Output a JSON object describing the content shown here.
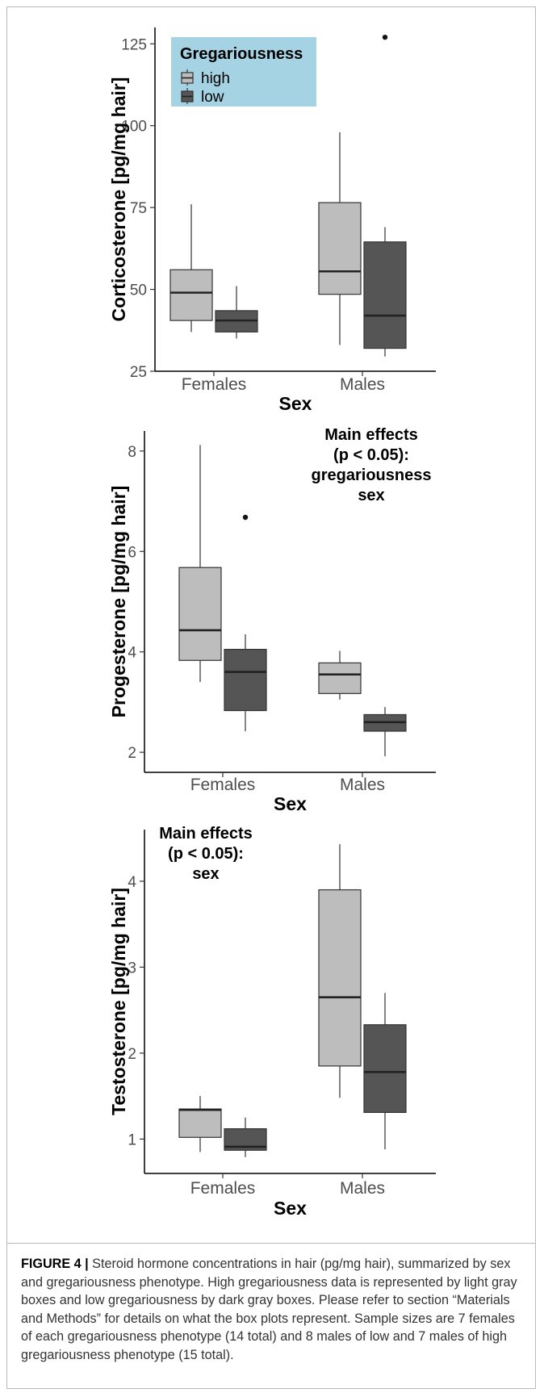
{
  "colors": {
    "high": "#bdbdbd",
    "low": "#555555",
    "legend_bg": "#a6d3e3",
    "axis": "#000000"
  },
  "chart_data": [
    {
      "type": "boxplot",
      "ylabel": "Corticosterone [pg/mg hair]",
      "xlabel": "Sex",
      "categories": [
        "Females",
        "Males"
      ],
      "ylim": [
        25,
        130
      ],
      "yticks": [
        25,
        50,
        75,
        100,
        125
      ],
      "legend": {
        "title": "Gregariousness",
        "entries": [
          "high",
          "low"
        ],
        "placement": "top-left"
      },
      "annotation": [],
      "series": [
        {
          "name": "high",
          "color": "#bdbdbd",
          "boxes": [
            {
              "min": 37,
              "q1": 40.5,
              "median": 49,
              "q3": 56,
              "max": 76,
              "outliers": []
            },
            {
              "min": 33,
              "q1": 48.5,
              "median": 55.5,
              "q3": 76.5,
              "max": 98,
              "outliers": []
            }
          ]
        },
        {
          "name": "low",
          "color": "#555555",
          "boxes": [
            {
              "min": 35,
              "q1": 37,
              "median": 40.5,
              "q3": 43.5,
              "max": 51,
              "outliers": []
            },
            {
              "min": 29.5,
              "q1": 32,
              "median": 42,
              "q3": 64.5,
              "max": 69,
              "outliers": [
                127
              ]
            }
          ]
        }
      ]
    },
    {
      "type": "boxplot",
      "ylabel": "Progesterone [pg/mg hair]",
      "xlabel": "Sex",
      "categories": [
        "Females",
        "Males"
      ],
      "ylim": [
        1.6,
        8.4
      ],
      "yticks": [
        2,
        4,
        6,
        8
      ],
      "annotation": [
        "Main effects",
        "(p < 0.05):",
        "gregariousness",
        "sex"
      ],
      "series": [
        {
          "name": "high",
          "color": "#bdbdbd",
          "boxes": [
            {
              "min": 3.4,
              "q1": 3.83,
              "median": 4.43,
              "q3": 5.68,
              "max": 8.12,
              "outliers": []
            },
            {
              "min": 3.05,
              "q1": 3.17,
              "median": 3.55,
              "q3": 3.78,
              "max": 4.02,
              "outliers": []
            }
          ]
        },
        {
          "name": "low",
          "color": "#555555",
          "boxes": [
            {
              "min": 2.42,
              "q1": 2.83,
              "median": 3.6,
              "q3": 4.05,
              "max": 4.35,
              "outliers": [
                6.68
              ]
            },
            {
              "min": 1.92,
              "q1": 2.42,
              "median": 2.6,
              "q3": 2.75,
              "max": 2.9,
              "outliers": []
            }
          ]
        }
      ]
    },
    {
      "type": "boxplot",
      "ylabel": "Testosterone [pg/mg hair]",
      "xlabel": "Sex",
      "categories": [
        "Females",
        "Males"
      ],
      "ylim": [
        0.6,
        4.6
      ],
      "yticks": [
        1,
        2,
        3,
        4
      ],
      "annotation": [
        "Main effects",
        "(p < 0.05):",
        "sex"
      ],
      "series": [
        {
          "name": "high",
          "color": "#bdbdbd",
          "boxes": [
            {
              "min": 0.85,
              "q1": 1.02,
              "median": 1.34,
              "q3": 1.35,
              "max": 1.5,
              "outliers": []
            },
            {
              "min": 1.48,
              "q1": 1.85,
              "median": 2.65,
              "q3": 3.9,
              "max": 4.43,
              "outliers": []
            }
          ]
        },
        {
          "name": "low",
          "color": "#555555",
          "boxes": [
            {
              "min": 0.79,
              "q1": 0.87,
              "median": 0.91,
              "q3": 1.12,
              "max": 1.25,
              "outliers": []
            },
            {
              "min": 0.88,
              "q1": 1.31,
              "median": 1.78,
              "q3": 2.33,
              "max": 2.7,
              "outliers": []
            }
          ]
        }
      ]
    }
  ],
  "caption": {
    "label": "FIGURE 4 |",
    "text": " Steroid hormone concentrations in hair (pg/mg hair), summarized by sex and gregariousness phenotype. High gregariousness data is represented by light gray boxes and low gregariousness by dark gray boxes. Please refer to section “Materials and Methods” for details on what the box plots represent. Sample sizes are 7 females of each gregariousness phenotype (14 total) and 8 males of low and 7 males of high gregariousness phenotype (15 total)."
  }
}
